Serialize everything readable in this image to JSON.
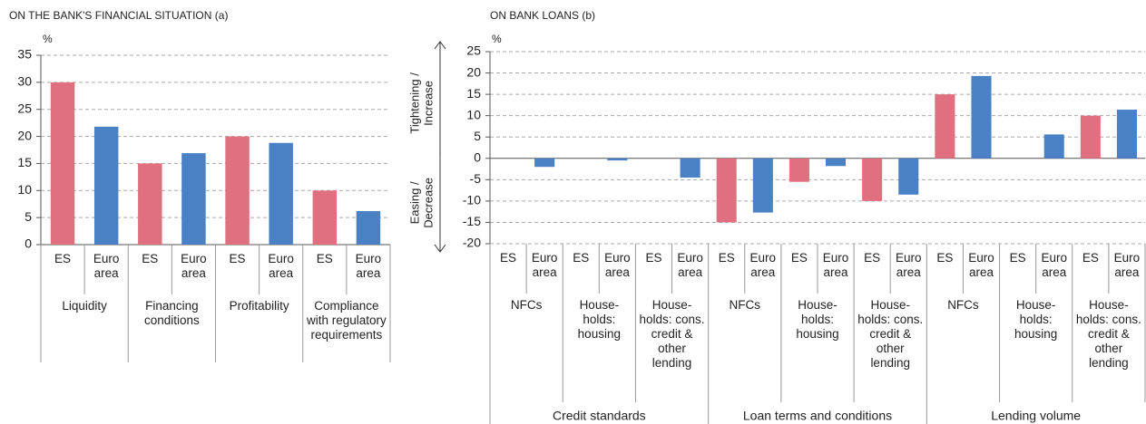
{
  "chart_data": [
    {
      "type": "bar",
      "title": "ON THE BANK'S FINANCIAL SITUATION (a)",
      "y_unit": "%",
      "ylim": [
        0,
        35
      ],
      "yticks": [
        0,
        5,
        10,
        15,
        20,
        25,
        30,
        35
      ],
      "grid": true,
      "categories": [
        "Liquidity",
        "Financing conditions",
        "Profitability",
        "Compliance with regulatory requirements"
      ],
      "series": [
        {
          "name": "ES",
          "color": "#e0707f",
          "values": [
            30,
            15,
            20,
            10
          ]
        },
        {
          "name": "Euro area",
          "color": "#4a80c4",
          "values": [
            21.8,
            16.9,
            18.8,
            6.2
          ]
        }
      ]
    },
    {
      "type": "bar",
      "title": "ON BANK LOANS (b)",
      "y_unit": "%",
      "ylim": [
        -20,
        25
      ],
      "yticks": [
        -20,
        -15,
        -10,
        -5,
        0,
        5,
        10,
        15,
        20,
        25
      ],
      "grid": true,
      "annotations": [
        [
          "Tightening /",
          "Increase"
        ],
        [
          "Easing /",
          "Decrease"
        ]
      ],
      "groups": [
        "Credit standards",
        "Loan terms and conditions",
        "Lending volume"
      ],
      "categories": [
        "NFCs",
        "House­holds: housing",
        "House­holds: cons. credit & other lending",
        "NFCs",
        "House­holds: housing",
        "House­holds: cons. credit & other lending",
        "NFCs",
        "House­holds: housing",
        "House­holds: cons. credit & other lending"
      ],
      "series": [
        {
          "name": "ES",
          "color": "#e0707f",
          "values": [
            0,
            0,
            0,
            -15,
            -5.5,
            -10,
            15,
            0,
            10
          ]
        },
        {
          "name": "Euro area",
          "color": "#4a80c4",
          "values": [
            -2,
            -0.5,
            -4.5,
            -12.7,
            -1.8,
            -8.5,
            19.3,
            5.6,
            11.4
          ]
        }
      ]
    }
  ]
}
